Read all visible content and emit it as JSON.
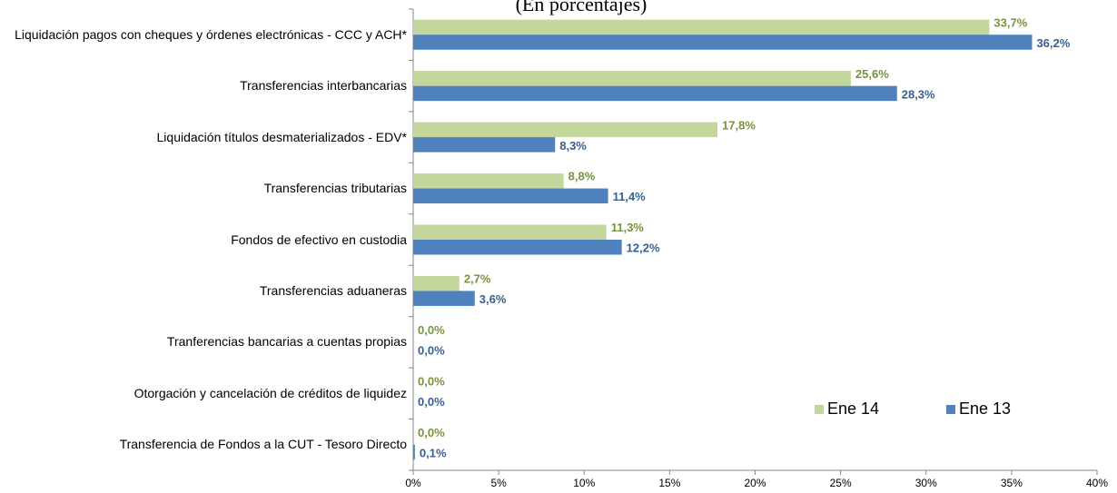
{
  "chart_data": {
    "type": "bar",
    "orientation": "horizontal",
    "subtitle": "(En porcentajes)",
    "categories": [
      "Liquidación pagos con cheques y órdenes electrónicas - CCC y ACH*",
      "Transferencias interbancarias",
      "Liquidación títulos desmaterializados - EDV*",
      "Transferencias tributarias",
      "Fondos de efectivo en custodia",
      "Transferencias aduaneras",
      "Tranferencias bancarias a cuentas propias",
      "Otorgación y cancelación de créditos de liquidez",
      "Transferencia de Fondos a la CUT - Tesoro Directo"
    ],
    "series": [
      {
        "name": "Ene 14",
        "color": "#c3d69b",
        "label_color": "#77933c",
        "values": [
          33.7,
          25.6,
          17.8,
          8.8,
          11.3,
          2.7,
          0.0,
          0.0,
          0.0
        ],
        "value_labels": [
          "33,7%",
          "25,6%",
          "17,8%",
          "8,8%",
          "11,3%",
          "2,7%",
          "0,0%",
          "0,0%",
          "0,0%"
        ]
      },
      {
        "name": "Ene 13",
        "color": "#4f81bd",
        "label_color": "#376092",
        "values": [
          36.2,
          28.3,
          8.3,
          11.4,
          12.2,
          3.6,
          0.0,
          0.0,
          0.1
        ],
        "value_labels": [
          "36,2%",
          "28,3%",
          "8,3%",
          "11,4%",
          "12,2%",
          "3,6%",
          "0,0%",
          "0,0%",
          "0,1%"
        ]
      }
    ],
    "xlim": [
      0,
      40
    ],
    "xticks": [
      {
        "value": 0,
        "label": "0%"
      },
      {
        "value": 5,
        "label": "5%"
      },
      {
        "value": 10,
        "label": "10%"
      },
      {
        "value": 15,
        "label": "15%"
      },
      {
        "value": 20,
        "label": "20%"
      },
      {
        "value": 25,
        "label": "25%"
      },
      {
        "value": 30,
        "label": "30%"
      },
      {
        "value": 35,
        "label": "35%"
      },
      {
        "value": 40,
        "label": "40%"
      }
    ],
    "grid": false,
    "legend": "lower right"
  }
}
